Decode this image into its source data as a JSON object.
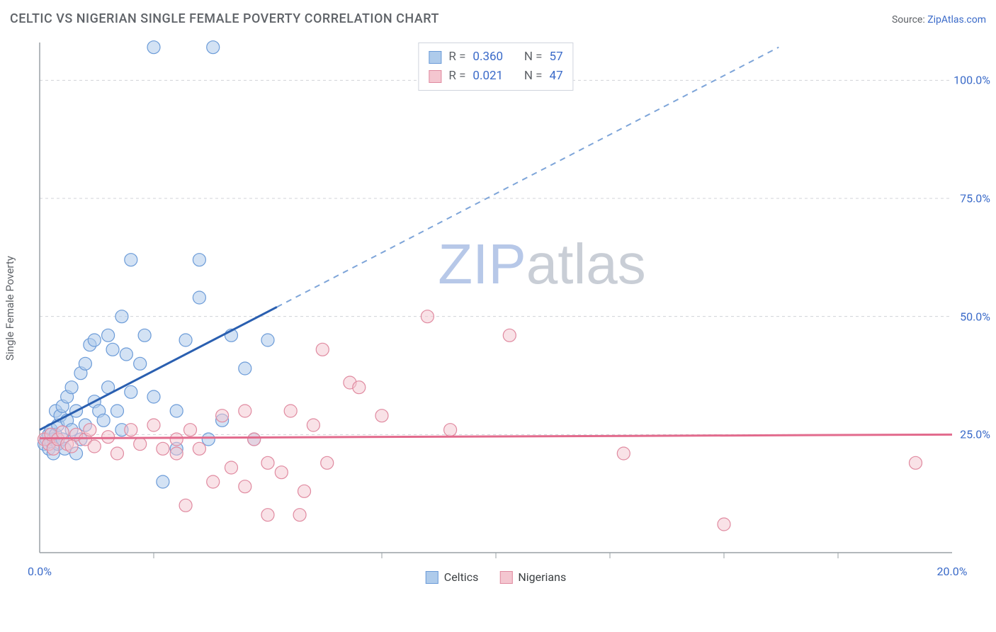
{
  "title": "CELTIC VS NIGERIAN SINGLE FEMALE POVERTY CORRELATION CHART",
  "source_label": "Source: ",
  "source_name": "ZipAtlas.com",
  "watermark_a": "ZIP",
  "watermark_b": "atlas",
  "watermark_color_a": "#b7c8e8",
  "watermark_color_b": "#c9ced6",
  "chart": {
    "type": "scatter",
    "y_label": "Single Female Poverty",
    "xlim": [
      0,
      20
    ],
    "ylim": [
      0,
      108
    ],
    "x_ticks": [
      0,
      5,
      10,
      15,
      20
    ],
    "x_tick_labels": [
      "0.0%",
      "",
      "",
      "",
      "20.0%"
    ],
    "y_ticks": [
      25,
      50,
      75,
      100
    ],
    "y_tick_labels": [
      "25.0%",
      "50.0%",
      "75.0%",
      "100.0%"
    ],
    "x_minor_ticks": [
      2.5,
      7.5,
      10,
      12.5,
      15,
      17.5
    ],
    "axis_color": "#9aa0a6",
    "grid_color": "#d0d3d8",
    "tick_label_color": "#3b6bc9",
    "series": [
      {
        "name": "Celtics",
        "fill": "#aecbeb",
        "stroke": "#6b9bd8",
        "fill_opacity": 0.55,
        "line_color": "#2a5fb0",
        "line_dash_color": "#7ea5d9",
        "R": "0.360",
        "N": "57",
        "trend": {
          "x1": 0,
          "y1": 26,
          "x2": 5.2,
          "y2": 52,
          "dash_to_x": 16.2,
          "dash_to_y": 107
        },
        "points": [
          [
            0.1,
            23
          ],
          [
            0.15,
            24
          ],
          [
            0.2,
            22
          ],
          [
            0.2,
            25
          ],
          [
            0.25,
            23.5
          ],
          [
            0.25,
            26
          ],
          [
            0.3,
            21
          ],
          [
            0.3,
            24
          ],
          [
            0.35,
            30
          ],
          [
            0.35,
            25
          ],
          [
            0.4,
            23
          ],
          [
            0.4,
            27
          ],
          [
            0.45,
            29
          ],
          [
            0.5,
            31
          ],
          [
            0.5,
            24
          ],
          [
            0.55,
            22
          ],
          [
            0.6,
            33
          ],
          [
            0.6,
            28
          ],
          [
            0.7,
            26
          ],
          [
            0.7,
            35
          ],
          [
            0.8,
            30
          ],
          [
            0.8,
            21
          ],
          [
            0.9,
            24
          ],
          [
            0.9,
            38
          ],
          [
            1.0,
            40
          ],
          [
            1.0,
            27
          ],
          [
            1.1,
            44
          ],
          [
            1.2,
            32
          ],
          [
            1.2,
            45
          ],
          [
            1.3,
            30
          ],
          [
            1.4,
            28
          ],
          [
            1.5,
            46
          ],
          [
            1.5,
            35
          ],
          [
            1.6,
            43
          ],
          [
            1.7,
            30
          ],
          [
            1.8,
            50
          ],
          [
            1.8,
            26
          ],
          [
            1.9,
            42
          ],
          [
            2.0,
            62
          ],
          [
            2.0,
            34
          ],
          [
            2.2,
            40
          ],
          [
            2.3,
            46
          ],
          [
            2.5,
            33
          ],
          [
            2.5,
            107
          ],
          [
            2.7,
            15
          ],
          [
            3.0,
            30
          ],
          [
            3.2,
            45
          ],
          [
            3.5,
            54
          ],
          [
            3.5,
            62
          ],
          [
            3.7,
            24
          ],
          [
            3.8,
            107
          ],
          [
            4.0,
            28
          ],
          [
            4.2,
            46
          ],
          [
            4.5,
            39
          ],
          [
            4.7,
            24
          ],
          [
            5.0,
            45
          ],
          [
            3.0,
            22
          ]
        ]
      },
      {
        "name": "Nigerians",
        "fill": "#f4c6d0",
        "stroke": "#e08aa0",
        "fill_opacity": 0.5,
        "line_color": "#e26b8d",
        "R": "0.021",
        "N": "47",
        "trend": {
          "x1": 0,
          "y1": 24.2,
          "x2": 20,
          "y2": 25.0
        },
        "points": [
          [
            0.1,
            24
          ],
          [
            0.2,
            23
          ],
          [
            0.25,
            25
          ],
          [
            0.3,
            22
          ],
          [
            0.4,
            24
          ],
          [
            0.5,
            25.5
          ],
          [
            0.6,
            23
          ],
          [
            0.7,
            22.5
          ],
          [
            0.8,
            25
          ],
          [
            1.0,
            24
          ],
          [
            1.1,
            26
          ],
          [
            1.2,
            22.5
          ],
          [
            1.5,
            24.5
          ],
          [
            1.7,
            21
          ],
          [
            2.0,
            26
          ],
          [
            2.2,
            23
          ],
          [
            2.5,
            27
          ],
          [
            2.7,
            22
          ],
          [
            3.0,
            24
          ],
          [
            3.0,
            21
          ],
          [
            3.2,
            10
          ],
          [
            3.3,
            26
          ],
          [
            3.5,
            22
          ],
          [
            3.8,
            15
          ],
          [
            4.0,
            29
          ],
          [
            4.2,
            18
          ],
          [
            4.5,
            30
          ],
          [
            4.5,
            14
          ],
          [
            4.7,
            24
          ],
          [
            5.0,
            8
          ],
          [
            5.0,
            19
          ],
          [
            5.3,
            17
          ],
          [
            5.5,
            30
          ],
          [
            5.7,
            8
          ],
          [
            5.8,
            13
          ],
          [
            6.0,
            27
          ],
          [
            6.2,
            43
          ],
          [
            6.3,
            19
          ],
          [
            6.8,
            36
          ],
          [
            7.0,
            35
          ],
          [
            7.5,
            29
          ],
          [
            8.5,
            50
          ],
          [
            9.0,
            26
          ],
          [
            10.3,
            46
          ],
          [
            12.8,
            21
          ],
          [
            15.0,
            6
          ],
          [
            19.2,
            19
          ]
        ]
      }
    ]
  },
  "legend_stats_labels": {
    "R": "R",
    "N": "N",
    "eq": "="
  },
  "legend_bottom": [
    {
      "label": "Celtics",
      "fill": "#aecbeb",
      "stroke": "#6b9bd8"
    },
    {
      "label": "Nigerians",
      "fill": "#f4c6d0",
      "stroke": "#e08aa0"
    }
  ]
}
